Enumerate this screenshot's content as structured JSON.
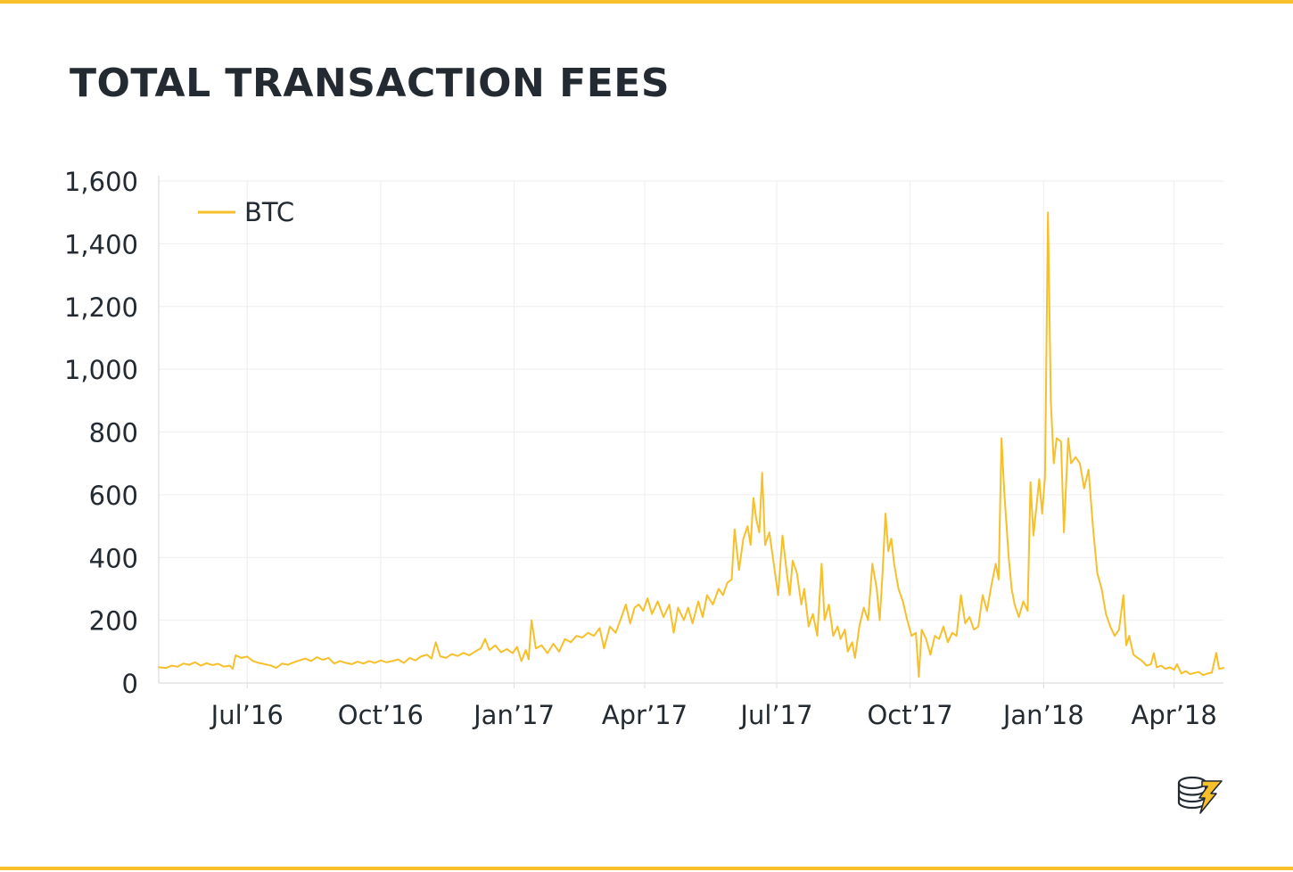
{
  "colors": {
    "accent": "#f7bf2a",
    "text": "#232a31",
    "grid": "#eeeeee",
    "axis": "#dddddd"
  },
  "title": "TOTAL TRANSACTION FEES",
  "logo": {
    "icon": "coins-lightning-logo-icon"
  },
  "chart_data": {
    "type": "line",
    "title": "TOTAL TRANSACTION FEES",
    "xlabel": "",
    "ylabel": "",
    "ylim": [
      0,
      1600
    ],
    "xlim": [
      "2016-05-01",
      "2018-05-05"
    ],
    "yticks": [
      0,
      200,
      400,
      600,
      800,
      1000,
      1200,
      1400,
      1600
    ],
    "yticklabels": [
      "0",
      "200",
      "400",
      "600",
      "800",
      "1,000",
      "1,200",
      "1,400",
      "1,600"
    ],
    "xticks": [
      "2016-07-01",
      "2016-10-01",
      "2017-01-01",
      "2017-04-01",
      "2017-07-01",
      "2017-10-01",
      "2018-01-01",
      "2018-04-01"
    ],
    "xticklabels": [
      "Jul’16",
      "Oct’16",
      "Jan’17",
      "Apr’17",
      "Jul’17",
      "Oct’17",
      "Jan’18",
      "Apr’18"
    ],
    "grid": true,
    "legend": {
      "placement": "top-left",
      "entries": [
        "BTC"
      ]
    },
    "series": [
      {
        "name": "BTC",
        "color": "#f7bf2a",
        "points": [
          [
            "2016-05-01",
            50
          ],
          [
            "2016-05-06",
            48
          ],
          [
            "2016-05-10",
            55
          ],
          [
            "2016-05-14",
            52
          ],
          [
            "2016-05-18",
            62
          ],
          [
            "2016-05-22",
            58
          ],
          [
            "2016-05-26",
            66
          ],
          [
            "2016-05-30",
            55
          ],
          [
            "2016-06-03",
            63
          ],
          [
            "2016-06-07",
            57
          ],
          [
            "2016-06-11",
            61
          ],
          [
            "2016-06-15",
            52
          ],
          [
            "2016-06-19",
            55
          ],
          [
            "2016-06-21",
            45
          ],
          [
            "2016-06-23",
            88
          ],
          [
            "2016-06-27",
            80
          ],
          [
            "2016-07-01",
            84
          ],
          [
            "2016-07-05",
            70
          ],
          [
            "2016-07-09",
            64
          ],
          [
            "2016-07-13",
            60
          ],
          [
            "2016-07-17",
            56
          ],
          [
            "2016-07-21",
            48
          ],
          [
            "2016-07-25",
            62
          ],
          [
            "2016-07-29",
            58
          ],
          [
            "2016-08-02",
            66
          ],
          [
            "2016-08-06",
            72
          ],
          [
            "2016-08-10",
            78
          ],
          [
            "2016-08-14",
            70
          ],
          [
            "2016-08-18",
            82
          ],
          [
            "2016-08-22",
            74
          ],
          [
            "2016-08-26",
            80
          ],
          [
            "2016-08-30",
            62
          ],
          [
            "2016-09-03",
            70
          ],
          [
            "2016-09-07",
            64
          ],
          [
            "2016-09-11",
            60
          ],
          [
            "2016-09-15",
            68
          ],
          [
            "2016-09-19",
            62
          ],
          [
            "2016-09-23",
            70
          ],
          [
            "2016-09-27",
            64
          ],
          [
            "2016-10-01",
            72
          ],
          [
            "2016-10-05",
            66
          ],
          [
            "2016-10-09",
            70
          ],
          [
            "2016-10-13",
            75
          ],
          [
            "2016-10-17",
            64
          ],
          [
            "2016-10-21",
            80
          ],
          [
            "2016-10-25",
            72
          ],
          [
            "2016-10-29",
            85
          ],
          [
            "2016-11-02",
            90
          ],
          [
            "2016-11-05",
            78
          ],
          [
            "2016-11-08",
            130
          ],
          [
            "2016-11-11",
            85
          ],
          [
            "2016-11-15",
            80
          ],
          [
            "2016-11-19",
            92
          ],
          [
            "2016-11-23",
            86
          ],
          [
            "2016-11-27",
            96
          ],
          [
            "2016-12-01",
            88
          ],
          [
            "2016-12-05",
            100
          ],
          [
            "2016-12-09",
            110
          ],
          [
            "2016-12-12",
            140
          ],
          [
            "2016-12-15",
            105
          ],
          [
            "2016-12-19",
            120
          ],
          [
            "2016-12-23",
            98
          ],
          [
            "2016-12-27",
            108
          ],
          [
            "2016-12-31",
            95
          ],
          [
            "2017-01-03",
            115
          ],
          [
            "2017-01-06",
            70
          ],
          [
            "2017-01-09",
            105
          ],
          [
            "2017-01-11",
            75
          ],
          [
            "2017-01-13",
            200
          ],
          [
            "2017-01-16",
            110
          ],
          [
            "2017-01-20",
            120
          ],
          [
            "2017-01-24",
            95
          ],
          [
            "2017-01-28",
            125
          ],
          [
            "2017-02-01",
            100
          ],
          [
            "2017-02-05",
            140
          ],
          [
            "2017-02-09",
            130
          ],
          [
            "2017-02-13",
            150
          ],
          [
            "2017-02-17",
            145
          ],
          [
            "2017-02-21",
            160
          ],
          [
            "2017-02-25",
            150
          ],
          [
            "2017-03-01",
            175
          ],
          [
            "2017-03-04",
            110
          ],
          [
            "2017-03-08",
            180
          ],
          [
            "2017-03-12",
            160
          ],
          [
            "2017-03-16",
            210
          ],
          [
            "2017-03-19",
            250
          ],
          [
            "2017-03-22",
            190
          ],
          [
            "2017-03-25",
            240
          ],
          [
            "2017-03-28",
            250
          ],
          [
            "2017-03-31",
            230
          ],
          [
            "2017-04-03",
            270
          ],
          [
            "2017-04-06",
            220
          ],
          [
            "2017-04-10",
            260
          ],
          [
            "2017-04-14",
            210
          ],
          [
            "2017-04-18",
            250
          ],
          [
            "2017-04-21",
            160
          ],
          [
            "2017-04-24",
            240
          ],
          [
            "2017-04-28",
            200
          ],
          [
            "2017-05-01",
            240
          ],
          [
            "2017-05-04",
            190
          ],
          [
            "2017-05-08",
            260
          ],
          [
            "2017-05-11",
            210
          ],
          [
            "2017-05-14",
            280
          ],
          [
            "2017-05-18",
            250
          ],
          [
            "2017-05-22",
            300
          ],
          [
            "2017-05-25",
            280
          ],
          [
            "2017-05-28",
            320
          ],
          [
            "2017-05-31",
            330
          ],
          [
            "2017-06-02",
            490
          ],
          [
            "2017-06-05",
            360
          ],
          [
            "2017-06-08",
            460
          ],
          [
            "2017-06-11",
            500
          ],
          [
            "2017-06-13",
            440
          ],
          [
            "2017-06-15",
            590
          ],
          [
            "2017-06-17",
            520
          ],
          [
            "2017-06-19",
            480
          ],
          [
            "2017-06-21",
            670
          ],
          [
            "2017-06-23",
            440
          ],
          [
            "2017-06-26",
            480
          ],
          [
            "2017-06-29",
            380
          ],
          [
            "2017-07-02",
            280
          ],
          [
            "2017-07-05",
            470
          ],
          [
            "2017-07-08",
            350
          ],
          [
            "2017-07-10",
            280
          ],
          [
            "2017-07-12",
            390
          ],
          [
            "2017-07-15",
            350
          ],
          [
            "2017-07-18",
            250
          ],
          [
            "2017-07-20",
            300
          ],
          [
            "2017-07-23",
            180
          ],
          [
            "2017-07-26",
            220
          ],
          [
            "2017-07-29",
            150
          ],
          [
            "2017-08-01",
            380
          ],
          [
            "2017-08-03",
            200
          ],
          [
            "2017-08-06",
            250
          ],
          [
            "2017-08-09",
            150
          ],
          [
            "2017-08-12",
            180
          ],
          [
            "2017-08-14",
            140
          ],
          [
            "2017-08-17",
            170
          ],
          [
            "2017-08-19",
            100
          ],
          [
            "2017-08-22",
            130
          ],
          [
            "2017-08-24",
            80
          ],
          [
            "2017-08-27",
            180
          ],
          [
            "2017-08-30",
            240
          ],
          [
            "2017-09-02",
            200
          ],
          [
            "2017-09-05",
            380
          ],
          [
            "2017-09-08",
            300
          ],
          [
            "2017-09-10",
            200
          ],
          [
            "2017-09-12",
            350
          ],
          [
            "2017-09-14",
            540
          ],
          [
            "2017-09-16",
            420
          ],
          [
            "2017-09-18",
            460
          ],
          [
            "2017-09-20",
            380
          ],
          [
            "2017-09-23",
            300
          ],
          [
            "2017-09-26",
            260
          ],
          [
            "2017-09-29",
            200
          ],
          [
            "2017-10-02",
            150
          ],
          [
            "2017-10-05",
            160
          ],
          [
            "2017-10-07",
            20
          ],
          [
            "2017-10-09",
            170
          ],
          [
            "2017-10-12",
            140
          ],
          [
            "2017-10-15",
            90
          ],
          [
            "2017-10-18",
            150
          ],
          [
            "2017-10-21",
            140
          ],
          [
            "2017-10-24",
            180
          ],
          [
            "2017-10-27",
            130
          ],
          [
            "2017-10-30",
            160
          ],
          [
            "2017-11-02",
            150
          ],
          [
            "2017-11-05",
            280
          ],
          [
            "2017-11-08",
            190
          ],
          [
            "2017-11-11",
            210
          ],
          [
            "2017-11-14",
            170
          ],
          [
            "2017-11-17",
            180
          ],
          [
            "2017-11-20",
            280
          ],
          [
            "2017-11-23",
            230
          ],
          [
            "2017-11-26",
            310
          ],
          [
            "2017-11-29",
            380
          ],
          [
            "2017-12-01",
            330
          ],
          [
            "2017-12-03",
            780
          ],
          [
            "2017-12-05",
            600
          ],
          [
            "2017-12-08",
            400
          ],
          [
            "2017-12-10",
            300
          ],
          [
            "2017-12-12",
            250
          ],
          [
            "2017-12-15",
            210
          ],
          [
            "2017-12-18",
            260
          ],
          [
            "2017-12-21",
            230
          ],
          [
            "2017-12-23",
            640
          ],
          [
            "2017-12-25",
            470
          ],
          [
            "2017-12-27",
            560
          ],
          [
            "2017-12-29",
            650
          ],
          [
            "2017-12-31",
            540
          ],
          [
            "2018-01-02",
            660
          ],
          [
            "2018-01-04",
            1500
          ],
          [
            "2018-01-06",
            900
          ],
          [
            "2018-01-08",
            700
          ],
          [
            "2018-01-10",
            780
          ],
          [
            "2018-01-13",
            770
          ],
          [
            "2018-01-15",
            480
          ],
          [
            "2018-01-18",
            780
          ],
          [
            "2018-01-20",
            700
          ],
          [
            "2018-01-23",
            720
          ],
          [
            "2018-01-26",
            700
          ],
          [
            "2018-01-29",
            620
          ],
          [
            "2018-02-01",
            680
          ],
          [
            "2018-02-04",
            500
          ],
          [
            "2018-02-07",
            350
          ],
          [
            "2018-02-10",
            300
          ],
          [
            "2018-02-13",
            220
          ],
          [
            "2018-02-16",
            180
          ],
          [
            "2018-02-19",
            150
          ],
          [
            "2018-02-22",
            170
          ],
          [
            "2018-02-25",
            280
          ],
          [
            "2018-02-27",
            120
          ],
          [
            "2018-03-01",
            150
          ],
          [
            "2018-03-04",
            90
          ],
          [
            "2018-03-07",
            80
          ],
          [
            "2018-03-10",
            70
          ],
          [
            "2018-03-13",
            55
          ],
          [
            "2018-03-16",
            60
          ],
          [
            "2018-03-18",
            95
          ],
          [
            "2018-03-20",
            50
          ],
          [
            "2018-03-23",
            55
          ],
          [
            "2018-03-26",
            45
          ],
          [
            "2018-03-29",
            50
          ],
          [
            "2018-04-01",
            42
          ],
          [
            "2018-04-03",
            60
          ],
          [
            "2018-04-06",
            30
          ],
          [
            "2018-04-09",
            38
          ],
          [
            "2018-04-12",
            28
          ],
          [
            "2018-04-15",
            32
          ],
          [
            "2018-04-18",
            35
          ],
          [
            "2018-04-21",
            25
          ],
          [
            "2018-04-24",
            30
          ],
          [
            "2018-04-27",
            33
          ],
          [
            "2018-04-30",
            96
          ],
          [
            "2018-05-02",
            45
          ],
          [
            "2018-05-05",
            48
          ]
        ]
      }
    ]
  }
}
